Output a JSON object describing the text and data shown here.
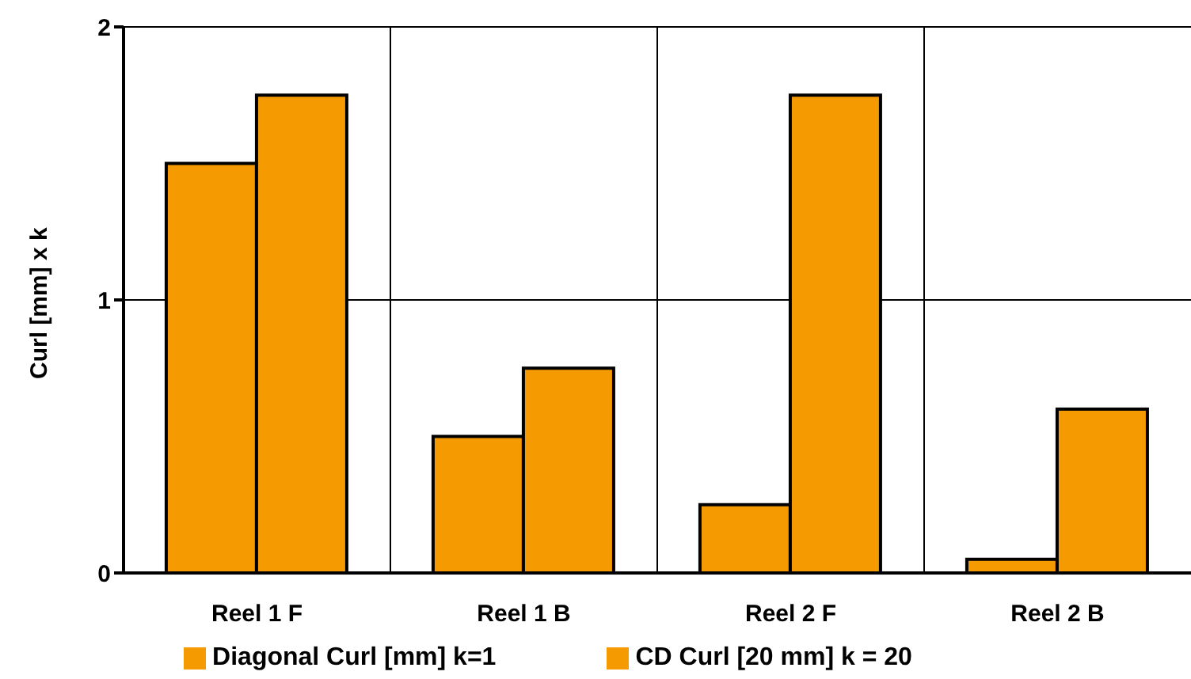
{
  "chart_data": {
    "type": "bar",
    "ylabel": "Curl [mm] x k",
    "categories": [
      "Reel 1 F",
      "Reel 1 B",
      "Reel 2 F",
      "Reel 2 B"
    ],
    "series": [
      {
        "name": "Diagonal Curl [mm] k=1",
        "color": "#f59a00",
        "values": [
          1.5,
          0.5,
          0.25,
          0.05
        ]
      },
      {
        "name": "CD Curl [20 mm] k = 20",
        "color": "#f59a00",
        "values": [
          1.75,
          0.75,
          1.75,
          0.6
        ]
      }
    ],
    "ylim": [
      0,
      2
    ],
    "yticks": [
      0,
      1,
      2
    ],
    "grid": true,
    "legend": "bottom"
  }
}
